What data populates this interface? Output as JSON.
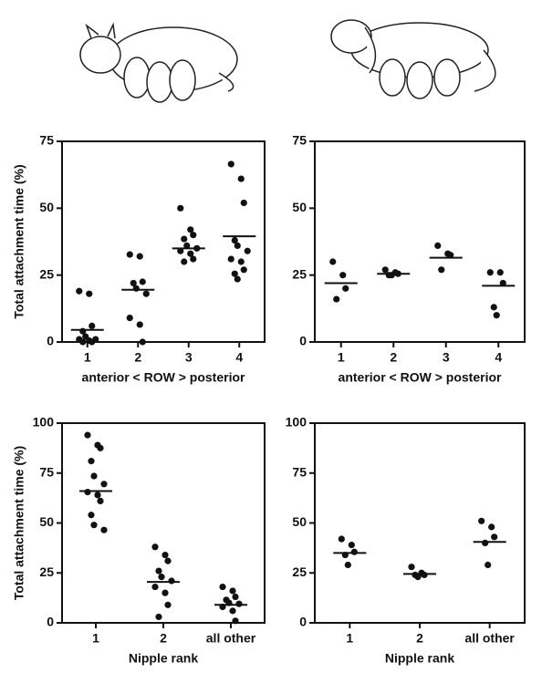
{
  "chart_data": [
    {
      "type": "strip",
      "ylabel": "Total attachment time (%)",
      "xlabel": "anterior < ROW > posterior",
      "categories": [
        "1",
        "2",
        "3",
        "4"
      ],
      "ylim": [
        0,
        75
      ],
      "yticks": [
        0,
        25,
        50,
        75
      ],
      "color": "#111111",
      "points": [
        [
          19,
          18,
          6,
          4,
          2,
          1,
          1,
          0.5,
          0,
          0
        ],
        [
          32.7,
          32,
          22.5,
          22,
          20,
          18,
          9,
          6.5,
          0
        ],
        [
          50,
          42,
          40,
          38.5,
          36,
          35,
          34,
          33,
          31,
          30
        ],
        [
          66.5,
          61,
          52,
          38,
          36,
          34,
          31,
          30,
          27,
          25.5,
          23.5
        ]
      ],
      "means": [
        4.5,
        19.5,
        35,
        39.5
      ]
    },
    {
      "type": "strip",
      "xlabel": "anterior < ROW > posterior",
      "categories": [
        "1",
        "2",
        "3",
        "4"
      ],
      "ylim": [
        0,
        75
      ],
      "yticks": [
        0,
        25,
        50,
        75
      ],
      "color": "#111111",
      "points": [
        [
          30,
          25,
          20,
          16
        ],
        [
          27,
          26,
          25.5,
          25,
          25
        ],
        [
          36,
          33,
          32.5,
          27
        ],
        [
          26,
          26,
          22,
          13,
          10
        ]
      ],
      "means": [
        22,
        25.5,
        31.5,
        21
      ]
    },
    {
      "type": "strip",
      "ylabel": "Total attachment time (%)",
      "xlabel": "Nipple rank",
      "categories": [
        "1",
        "2",
        "all other"
      ],
      "ylim": [
        0,
        100
      ],
      "yticks": [
        0,
        25,
        50,
        75,
        100
      ],
      "color": "#111111",
      "points": [
        [
          94,
          89,
          87.5,
          81,
          73.5,
          69.5,
          65.5,
          64,
          61,
          54,
          49,
          46.5
        ],
        [
          38,
          34,
          31,
          26,
          23,
          21,
          18,
          15,
          9,
          3
        ],
        [
          18,
          16,
          13,
          11.5,
          10,
          9.5,
          8,
          6,
          1
        ]
      ],
      "means": [
        66,
        20.5,
        9
      ]
    },
    {
      "type": "strip",
      "xlabel": "Nipple rank",
      "categories": [
        "1",
        "2",
        "all other"
      ],
      "ylim": [
        0,
        100
      ],
      "yticks": [
        0,
        25,
        50,
        75,
        100
      ],
      "color": "#111111",
      "points": [
        [
          42,
          39,
          35.5,
          34,
          29
        ],
        [
          28,
          25,
          24,
          24,
          23
        ],
        [
          51,
          48,
          43,
          40,
          29
        ]
      ],
      "means": [
        35,
        24.5,
        40.5
      ]
    }
  ]
}
